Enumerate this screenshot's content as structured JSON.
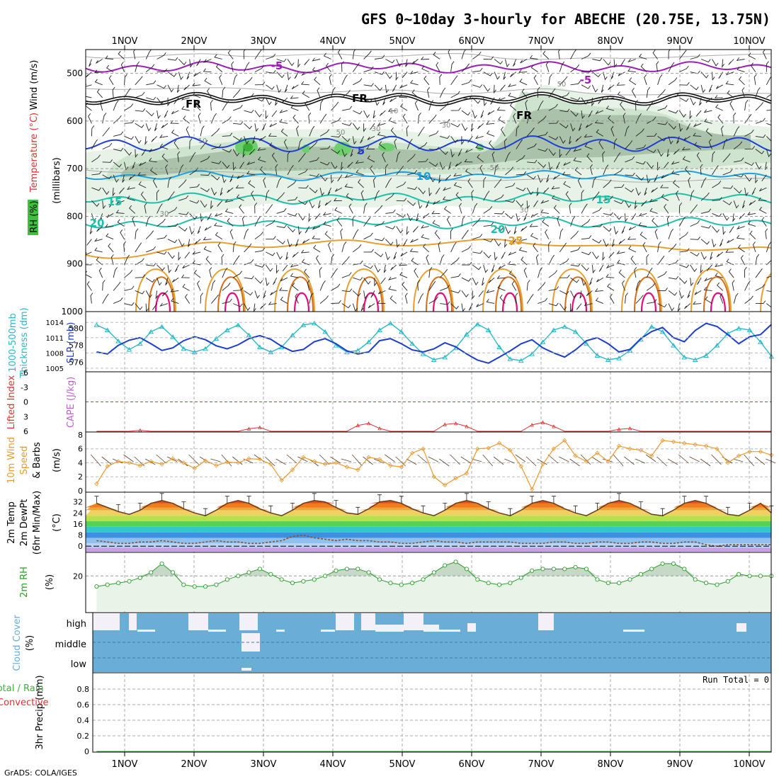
{
  "title": "GFS 0~10day 3-hourly for ABECHE (20.75E, 13.75N)",
  "footer": "GrADS: COLA/IGES",
  "run_total_label": "Run Total = 0",
  "colors": {
    "rh": "#7fcf7f",
    "purple": "#9b1fb5",
    "blue": "#1f3fd6",
    "cyan": "#1ea0dc",
    "teal": "#1fbfaa",
    "orange": "#e6a030",
    "magenta": "#e0107a",
    "slp": "#1d3fc8",
    "thick": "#2ab8c4",
    "lifted": "#e03030",
    "cape": "#c060d0",
    "speed": "#e89a30",
    "temp": "#e06010",
    "cloud": "#6aaed6",
    "rh2m": "#2a9d2a",
    "precip_total": "#3fb03f",
    "precip_conv": "#e03030"
  },
  "chart_data": [
    {
      "type": "contour",
      "name": "upper-air",
      "x": [
        "1NOV",
        "2NOV",
        "3NOV",
        "4NOV",
        "5NOV",
        "6NOV",
        "7NOV",
        "8NOV",
        "9NOV",
        "10NOV"
      ],
      "ylabel": "Temperature (°C) Wind (m/s) RH (%) (millibars)",
      "ylabel_parts": [
        "RH (%)",
        "Temperature (°C)",
        "Wind (m/s)",
        "(millibars)"
      ],
      "y_ticks": [
        "500",
        "600",
        "700",
        "800",
        "900",
        "1000"
      ],
      "ylim": [
        1000,
        450
      ],
      "contour_labels": [
        "-5",
        "-5",
        "FR",
        "FR",
        "FR",
        "5",
        "10",
        "10",
        "15",
        "15",
        "20",
        "20",
        "25"
      ],
      "rh_labels": [
        "10",
        "10",
        "30",
        "30",
        "30",
        "50",
        "50",
        "50",
        "30"
      ]
    },
    {
      "type": "line",
      "name": "thickness-slp",
      "ylabel": [
        "1000-500mb",
        "Thickness (dm)",
        "SLP (mb)"
      ],
      "y_ticks_left": [
        "576",
        "578",
        "580"
      ],
      "y_ticks_right": [
        "1005",
        "1008",
        "1011",
        "1014"
      ],
      "series": [
        {
          "name": "Thickness",
          "values": [
            580.4,
            579.8,
            578.5,
            577.5,
            578.2,
            579.6,
            580.2,
            579.0,
            577.6,
            577.2,
            577.6,
            578.8,
            579.8,
            580.4,
            579.2,
            577.8,
            577.2,
            577.8,
            579.2,
            580.4,
            580.6,
            579.6,
            578.0,
            577.2,
            577.4,
            578.4,
            579.8,
            580.6,
            579.6,
            578.2,
            577.0,
            576.3,
            576.6,
            577.7,
            579.3,
            580.5,
            579.8,
            577.8,
            576.4,
            576.2,
            577.0,
            578.4,
            579.8,
            580.2,
            579.6,
            578.2,
            576.8,
            576.3,
            576.5,
            577.4,
            578.7,
            580.2,
            579.6,
            578.0,
            576.6,
            576.3,
            576.8,
            578.0,
            579.4,
            580.0,
            579.8,
            578.4,
            576.7
          ]
        },
        {
          "name": "SLP",
          "values": [
            1008.2,
            1007.8,
            1009.5,
            1010.5,
            1011.0,
            1009.8,
            1008.5,
            1009.0,
            1010.4,
            1011.2,
            1010.6,
            1009.4,
            1008.8,
            1009.6,
            1010.8,
            1011.4,
            1010.7,
            1009.3,
            1008.3,
            1008.7,
            1010.2,
            1010.8,
            1009.8,
            1008.4,
            1007.8,
            1008.2,
            1010.4,
            1010.8,
            1009.8,
            1008.6,
            1008.2,
            1008.8,
            1010.0,
            1009.2,
            1007.8,
            1006.6,
            1006.0,
            1007.2,
            1008.4,
            1009.8,
            1010.6,
            1009.0,
            1008.0,
            1007.2,
            1008.6,
            1010.4,
            1011.0,
            1009.8,
            1008.2,
            1008.7,
            1010.8,
            1012.2,
            1013.0,
            1011.0,
            1010.2,
            1012.4,
            1013.8,
            1013.2,
            1011.6,
            1009.8,
            1011.2,
            1011.6,
            1013.6
          ]
        }
      ]
    },
    {
      "type": "line",
      "name": "lifted-cape",
      "ylabel": [
        "Lifted Index",
        "CAPE (J/kg)"
      ],
      "y_ticks": [
        "-6",
        "-3",
        "0",
        "3",
        "6"
      ],
      "ylim": [
        6,
        -6
      ],
      "series": [
        {
          "name": "Lifted Index",
          "values": [
            6,
            6,
            6,
            6,
            5.8,
            6,
            6,
            6,
            6,
            6,
            6,
            6,
            6,
            6,
            5.5,
            5.2,
            6,
            6,
            6,
            6,
            6,
            6,
            6,
            6,
            4.8,
            4.4,
            5.4,
            6,
            6,
            6,
            6,
            6,
            4.6,
            4.4,
            5.0,
            6,
            6,
            6,
            6,
            6,
            4.7,
            4.2,
            5.0,
            6,
            6,
            6,
            6,
            6,
            5.6,
            5.4,
            6,
            6,
            6,
            6,
            6,
            6,
            6,
            6,
            6,
            6,
            6,
            6,
            6
          ]
        }
      ]
    },
    {
      "type": "line",
      "name": "wind-speed",
      "ylabel": [
        "10m Wind",
        "Speed",
        "& Barbs",
        "(m/s)"
      ],
      "y_ticks": [
        "0",
        "2",
        "4",
        "6",
        "8"
      ],
      "ylim": [
        0,
        8
      ],
      "series": [
        {
          "name": "Speed",
          "values": [
            1.0,
            3.5,
            4.2,
            4.0,
            3.6,
            4.2,
            3.8,
            4.6,
            4.0,
            3.2,
            4.3,
            3.6,
            4.1,
            4.0,
            4.6,
            4.5,
            3.8,
            1.5,
            3.0,
            4.8,
            4.2,
            3.8,
            4.0,
            3.4,
            3.0,
            4.8,
            4.5,
            3.6,
            3.4,
            5.4,
            6.0,
            2.0,
            0.8,
            1.8,
            2.5,
            6.0,
            6.1,
            6.8,
            5.8,
            3.5,
            0.2,
            3.8,
            6.0,
            7.2,
            5.0,
            4.2,
            5.4,
            4.2,
            6.4,
            6.0,
            5.8,
            5.0,
            7.2,
            7.0,
            6.8,
            6.6,
            6.4,
            6.0,
            4.0,
            5.0,
            5.6,
            5.6,
            5.1
          ]
        }
      ]
    },
    {
      "type": "area",
      "name": "temperature",
      "ylabel": [
        "2m Temp",
        "2m DewPt",
        "(6hr Min/Max)",
        "(°C)"
      ],
      "y_ticks": [
        "0",
        "8",
        "16",
        "24",
        "32"
      ],
      "ylim": [
        -4,
        38
      ],
      "series": [
        {
          "name": "2m Temp",
          "values": [
            31,
            28,
            25,
            23,
            26,
            31,
            33,
            31,
            27,
            24,
            22,
            26,
            31,
            33,
            31,
            27,
            24,
            22,
            26,
            31,
            33,
            32,
            28,
            24,
            23,
            27,
            32,
            33,
            31,
            27,
            24,
            22,
            26,
            31,
            33,
            31,
            27,
            24,
            22,
            26,
            31,
            33,
            31,
            27,
            24,
            22,
            26,
            31,
            33,
            31,
            27,
            23,
            22,
            26,
            31,
            33,
            31,
            27,
            23,
            22,
            26,
            31,
            24
          ]
        },
        {
          "name": "2m DewPt",
          "values": [
            4,
            3,
            2,
            2,
            3,
            3,
            4,
            3,
            2,
            2,
            3,
            4,
            3,
            3,
            2,
            2,
            3,
            4,
            7,
            8,
            6,
            5,
            4,
            5,
            4,
            4,
            3,
            3,
            2,
            2,
            3,
            4,
            3,
            3,
            2,
            3,
            3,
            3,
            3,
            2,
            2,
            2,
            3,
            3,
            2,
            2,
            3,
            3,
            2,
            2,
            3,
            3,
            2,
            2,
            3,
            3,
            1,
            0,
            1,
            1,
            1,
            1,
            1
          ]
        }
      ]
    },
    {
      "type": "area",
      "name": "relative-humidity",
      "ylabel": [
        "2m RH",
        "(%)"
      ],
      "y_ticks": [
        "20"
      ],
      "ylim": [
        0,
        33
      ],
      "series": [
        {
          "name": "2m RH",
          "values": [
            14,
            15,
            16,
            17,
            19,
            22,
            27,
            22,
            15,
            14,
            14,
            15,
            18,
            20,
            22,
            24,
            21,
            18,
            16,
            17,
            18,
            20,
            23,
            24,
            24,
            22,
            18,
            16,
            15,
            16,
            18,
            22,
            26,
            28,
            24,
            18,
            16,
            15,
            16,
            19,
            23,
            24,
            24,
            24,
            25,
            24,
            18,
            16,
            16,
            18,
            21,
            24,
            27,
            27,
            24,
            18,
            16,
            15,
            17,
            21,
            20,
            20,
            20
          ]
        }
      ]
    },
    {
      "type": "bar",
      "name": "cloud-cover",
      "ylabel": [
        "Cloud Cover",
        "(%)"
      ],
      "categories": [
        "high",
        "middle",
        "low"
      ]
    },
    {
      "type": "line",
      "name": "precipitation",
      "ylabel": [
        "3hr Precip (mm)",
        "Total / Rain",
        "Convective"
      ],
      "y_ticks": [
        "0",
        "0.2",
        "0.4",
        "0.6",
        "0.8"
      ],
      "ylim": [
        0,
        1
      ],
      "series": [
        {
          "name": "Total / Rain",
          "values": [
            0,
            0,
            0,
            0,
            0,
            0,
            0,
            0,
            0,
            0,
            0,
            0,
            0,
            0,
            0,
            0,
            0,
            0,
            0,
            0,
            0,
            0,
            0,
            0,
            0,
            0,
            0,
            0,
            0,
            0,
            0,
            0,
            0,
            0,
            0,
            0,
            0,
            0,
            0,
            0,
            0,
            0,
            0,
            0,
            0,
            0,
            0,
            0,
            0,
            0,
            0,
            0,
            0,
            0,
            0,
            0,
            0,
            0,
            0,
            0,
            0,
            0,
            0
          ]
        }
      ]
    }
  ]
}
